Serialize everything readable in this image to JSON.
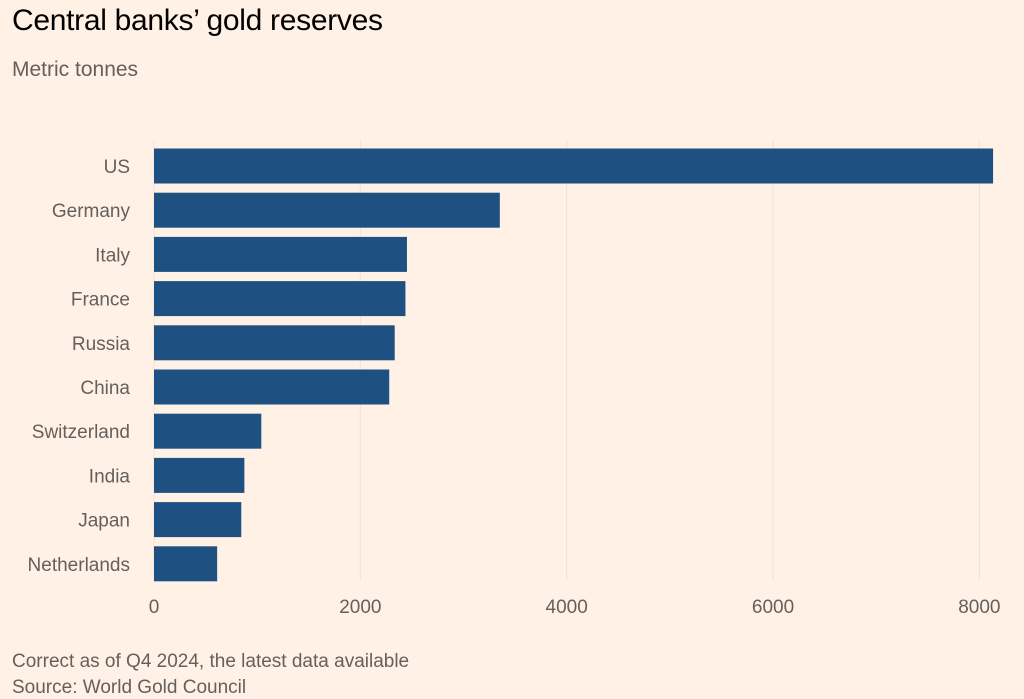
{
  "chart_data": {
    "type": "bar",
    "orientation": "horizontal",
    "title": "Central banks’ gold reserves",
    "subtitle": "Metric tonnes",
    "categories": [
      "US",
      "Germany",
      "Italy",
      "France",
      "Russia",
      "China",
      "Switzerland",
      "India",
      "Japan",
      "Netherlands"
    ],
    "values": [
      8133,
      3352,
      2452,
      2437,
      2333,
      2280,
      1040,
      876,
      846,
      612
    ],
    "xlim": [
      0,
      8200
    ],
    "xticks": [
      0,
      2000,
      4000,
      6000,
      8000
    ],
    "xlabel": "",
    "ylabel": "",
    "grid": true,
    "bar_color": "#1F5082",
    "note": "Correct as of Q4 2024, the latest data available",
    "source": "Source: World Gold Council"
  }
}
